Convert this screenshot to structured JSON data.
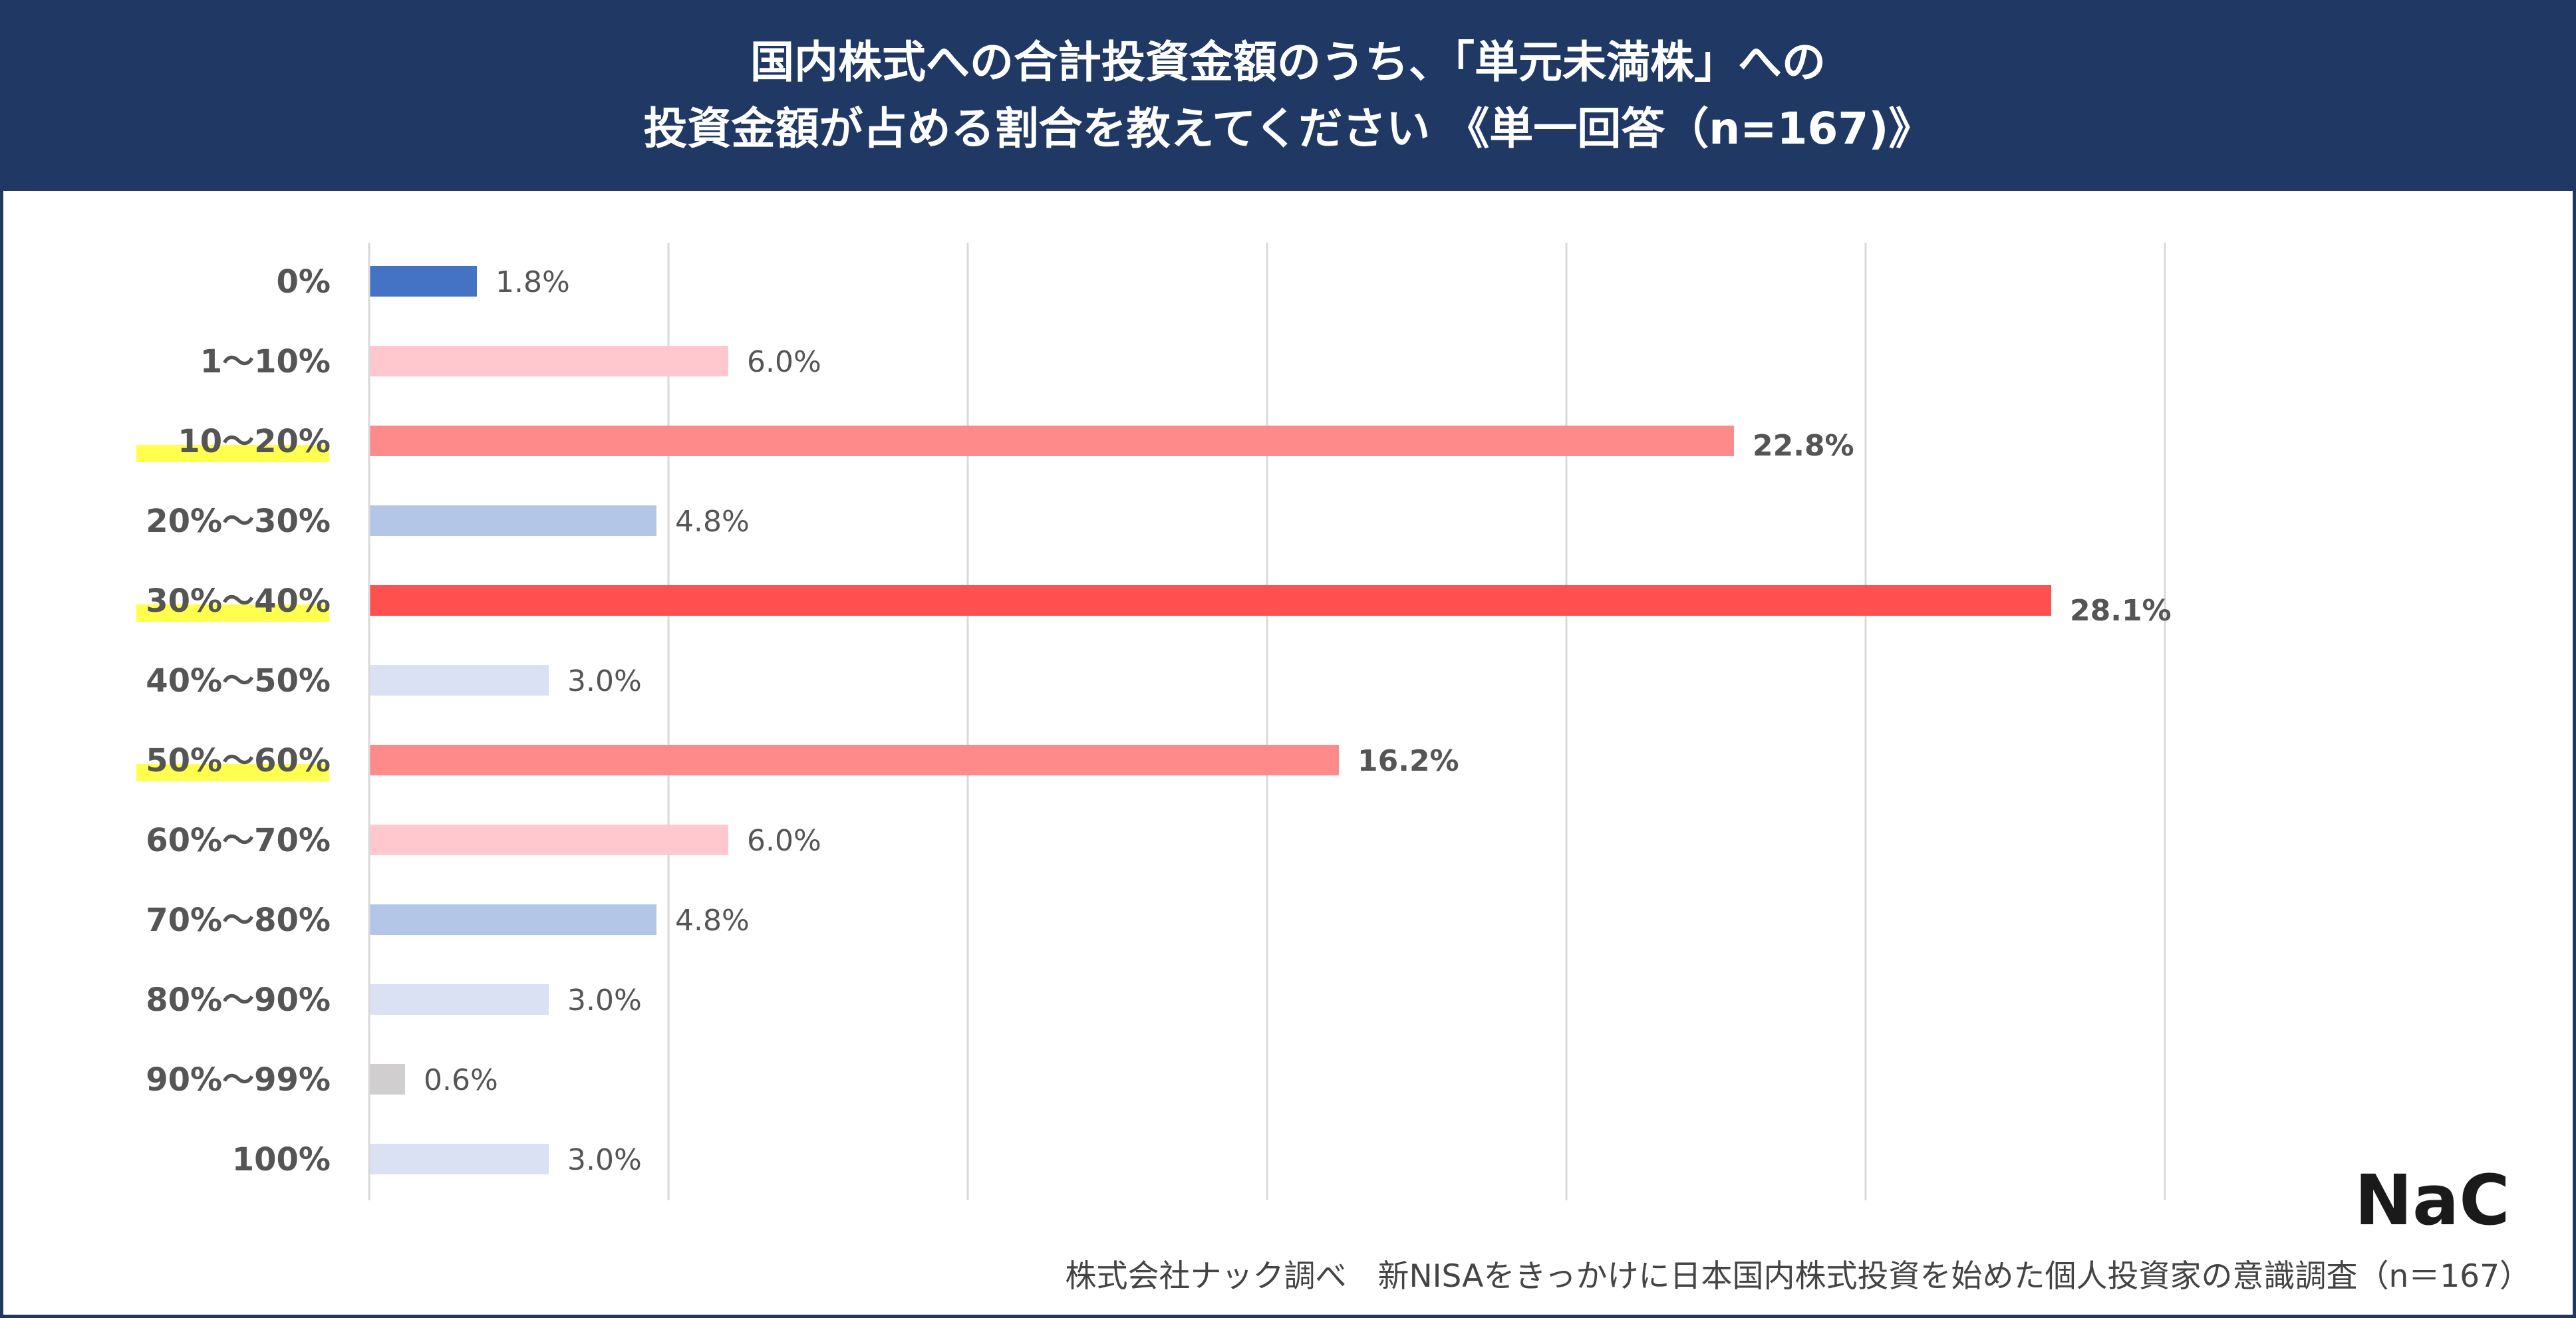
{
  "title": {
    "line1": "国内株式への合計投資金額のうち、「単元未満株」への",
    "line2": "投資金額が占める割合を教えてください 《単一回答（n=167)》"
  },
  "chart_data": {
    "type": "bar",
    "orientation": "horizontal",
    "categories": [
      "0%",
      "1〜10%",
      "10〜20%",
      "20%〜30%",
      "30%〜40%",
      "40%〜50%",
      "50%〜60%",
      "60%〜70%",
      "70%〜80%",
      "80%〜90%",
      "90%〜99%",
      "100%"
    ],
    "values": [
      1.8,
      6.0,
      22.8,
      4.8,
      28.1,
      3.0,
      16.2,
      6.0,
      4.8,
      3.0,
      0.6,
      3.0
    ],
    "value_labels": [
      "1.8%",
      "6.0%",
      "22.8%",
      "4.8%",
      "28.1%",
      "3.0%",
      "16.2%",
      "6.0%",
      "4.8%",
      "3.0%",
      "0.6%",
      "3.0%"
    ],
    "bar_colors": [
      "#4472c4",
      "#ffc7ce",
      "#ff8a8a",
      "#b4c6e7",
      "#ff5050",
      "#d9e1f2",
      "#ff8a8a",
      "#ffc7ce",
      "#b4c6e7",
      "#d9e1f2",
      "#d0cece",
      "#d9e1f2"
    ],
    "highlighted_labels": [
      "10〜20%",
      "30%〜40%",
      "50%〜60%"
    ],
    "highlight_color": "#ffff4d",
    "xlim": [
      0,
      30
    ],
    "grid": true,
    "legend": "none"
  },
  "footer": {
    "source": "株式会社ナック調べ　新NISAをきっかけに日本国内株式投資を始めた個人投資家の意識調査（n＝167）",
    "logo_text": "NaC"
  }
}
